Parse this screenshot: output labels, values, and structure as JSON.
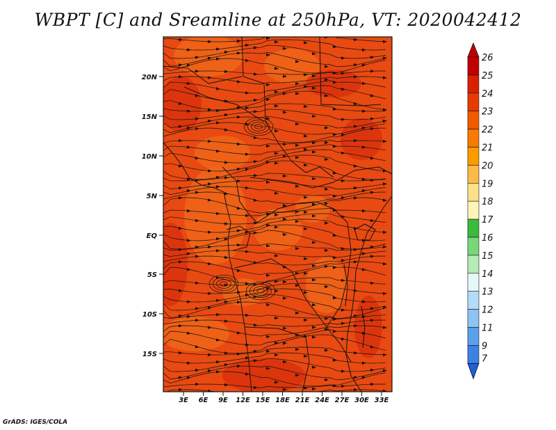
{
  "title": "WBPT [C] and Sreamline at 250hPa, VT: 2020042412",
  "footer": "GrADS: IGES/COLA",
  "axes": {
    "lat_ticks": [
      "20N",
      "15N",
      "10N",
      "5N",
      "EQ",
      "5S",
      "10S",
      "15S"
    ],
    "lon_ticks": [
      "3E",
      "6E",
      "9E",
      "12E",
      "15E",
      "18E",
      "21E",
      "24E",
      "27E",
      "30E",
      "33E"
    ]
  },
  "colorbar": {
    "levels": [
      "26",
      "25",
      "24",
      "23",
      "22",
      "21",
      "20",
      "19",
      "18",
      "17",
      "16",
      "15",
      "14",
      "13",
      "12",
      "11",
      "9",
      "7"
    ],
    "colors": [
      "#c00000",
      "#d92000",
      "#e83b00",
      "#f25a00",
      "#f87a00",
      "#fb9b00",
      "#fdb94a",
      "#fde08a",
      "#fff5b8",
      "#3cba3c",
      "#7ad67a",
      "#b4ecb4",
      "#e6f8f8",
      "#b4dcfa",
      "#8cc4f4",
      "#5aa0ec",
      "#3c82e4",
      "#1e5ed6"
    ]
  },
  "field_colors": {
    "base": "#e84a12",
    "warm": "#f06a1a",
    "hot": "#d82f0c",
    "streamline": "#111111"
  }
}
